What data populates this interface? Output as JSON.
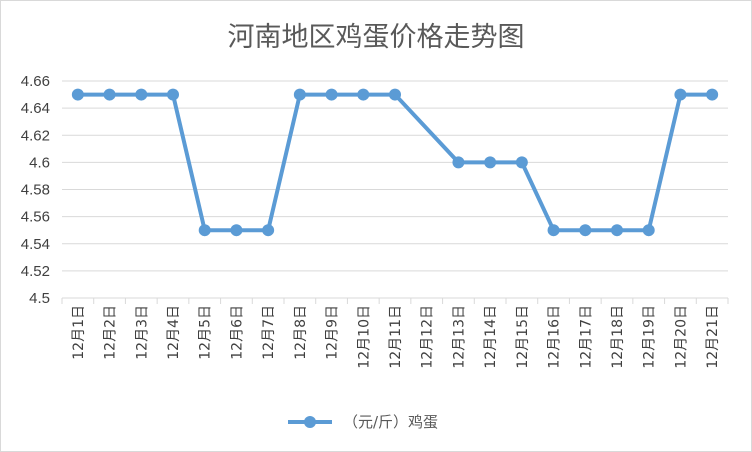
{
  "chart_data": {
    "type": "line",
    "title": "河南地区鸡蛋价格走势图",
    "categories": [
      "12月1日",
      "12月2日",
      "12月3日",
      "12月4日",
      "12月5日",
      "12月6日",
      "12月7日",
      "12月8日",
      "12月9日",
      "12月10日",
      "12月11日",
      "12月12日",
      "12月13日",
      "12月14日",
      "12月15日",
      "12月16日",
      "12月17日",
      "12月18日",
      "12月19日",
      "12月20日",
      "12月21日"
    ],
    "series": [
      {
        "name": "（元/斤）鸡蛋",
        "color": "#5b9bd5",
        "values": [
          4.65,
          4.65,
          4.65,
          4.65,
          4.55,
          4.55,
          4.55,
          4.65,
          4.65,
          4.65,
          4.65,
          null,
          4.6,
          4.6,
          4.6,
          4.55,
          4.55,
          4.55,
          4.55,
          4.65,
          4.65
        ]
      }
    ],
    "ylim": [
      4.5,
      4.66
    ],
    "yticks": [
      "4.66",
      "4.64",
      "4.62",
      "4.6",
      "4.58",
      "4.56",
      "4.54",
      "4.52",
      "4.5"
    ],
    "xlabel": "",
    "ylabel": "",
    "grid": true,
    "legend_position": "bottom",
    "gridline_color": "#d9d9d9"
  }
}
